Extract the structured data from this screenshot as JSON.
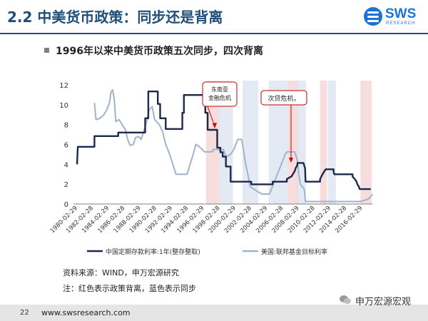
{
  "slide": {
    "title": "2.2 中美货币政策：同步还是背离",
    "subtitle": "1996年以来中美货币政策五次同步，四次背离",
    "logo_text": "SWS",
    "logo_sub": "RESEARCH"
  },
  "chart_data": {
    "type": "line",
    "title": "",
    "xlabel": "",
    "ylabel": "",
    "ylim": [
      0,
      12
    ],
    "yticks": [
      0,
      2,
      4,
      6,
      8,
      10,
      12
    ],
    "xticks": [
      "1980-02-29",
      "1982-02-28",
      "1984-02-29",
      "1986-02-28",
      "1988-02-29",
      "1990-02-28",
      "1992-02-29",
      "1994-02-28",
      "1996-02-29",
      "1998-02-28",
      "2000-02-29",
      "2002-02-28",
      "2004-02-29",
      "2006-02-28",
      "2008-02-29",
      "2010-02-28",
      "2012-02-29",
      "2014-02-28",
      "2016-02-29"
    ],
    "series": [
      {
        "name": "中国定期存款利率:1年(整存整取)",
        "color": "#1b2a4a",
        "points": [
          [
            1980.1,
            4.0
          ],
          [
            1980.2,
            5.76
          ],
          [
            1982.3,
            5.76
          ],
          [
            1982.3,
            6.84
          ],
          [
            1985.3,
            6.84
          ],
          [
            1985.3,
            7.2
          ],
          [
            1988.7,
            7.2
          ],
          [
            1988.7,
            8.64
          ],
          [
            1989.1,
            8.64
          ],
          [
            1989.1,
            11.34
          ],
          [
            1990.3,
            11.34
          ],
          [
            1990.3,
            10.08
          ],
          [
            1990.6,
            10.08
          ],
          [
            1990.6,
            8.64
          ],
          [
            1991.3,
            8.64
          ],
          [
            1991.3,
            7.56
          ],
          [
            1993.4,
            7.56
          ],
          [
            1993.4,
            9.18
          ],
          [
            1993.6,
            9.18
          ],
          [
            1993.6,
            10.98
          ],
          [
            1996.3,
            10.98
          ],
          [
            1996.3,
            9.18
          ],
          [
            1996.6,
            9.18
          ],
          [
            1996.6,
            7.47
          ],
          [
            1997.8,
            7.47
          ],
          [
            1997.8,
            5.67
          ],
          [
            1998.2,
            5.67
          ],
          [
            1998.2,
            5.22
          ],
          [
            1998.5,
            5.22
          ],
          [
            1998.5,
            4.77
          ],
          [
            1998.9,
            4.77
          ],
          [
            1998.9,
            3.78
          ],
          [
            1999.5,
            3.78
          ],
          [
            1999.5,
            2.25
          ],
          [
            2002.1,
            2.25
          ],
          [
            2002.1,
            1.98
          ],
          [
            2004.8,
            1.98
          ],
          [
            2004.8,
            2.25
          ],
          [
            2006.6,
            2.25
          ],
          [
            2006.6,
            2.52
          ],
          [
            2007.2,
            2.79
          ],
          [
            2007.4,
            3.06
          ],
          [
            2007.6,
            3.33
          ],
          [
            2007.7,
            3.6
          ],
          [
            2007.9,
            3.87
          ],
          [
            2007.95,
            4.14
          ],
          [
            2008.7,
            4.14
          ],
          [
            2008.8,
            3.87
          ],
          [
            2008.9,
            3.6
          ],
          [
            2008.95,
            2.52
          ],
          [
            2008.97,
            2.25
          ],
          [
            2010.8,
            2.25
          ],
          [
            2010.8,
            2.5
          ],
          [
            2010.95,
            2.75
          ],
          [
            2011.1,
            3.0
          ],
          [
            2011.3,
            3.25
          ],
          [
            2011.5,
            3.5
          ],
          [
            2012.5,
            3.5
          ],
          [
            2012.5,
            3.25
          ],
          [
            2012.6,
            3.0
          ],
          [
            2014.9,
            3.0
          ],
          [
            2014.9,
            2.75
          ],
          [
            2015.2,
            2.5
          ],
          [
            2015.4,
            2.25
          ],
          [
            2015.5,
            2.0
          ],
          [
            2015.7,
            1.75
          ],
          [
            2015.8,
            1.5
          ],
          [
            2017.2,
            1.5
          ]
        ]
      },
      {
        "name": "美国:联邦基金目标利率",
        "color": "#9fb4cc",
        "points": [
          [
            1982.3,
            10.2
          ],
          [
            1982.5,
            8.5
          ],
          [
            1982.9,
            8.6
          ],
          [
            1983.4,
            8.9
          ],
          [
            1983.8,
            9.4
          ],
          [
            1984.2,
            10.2
          ],
          [
            1984.4,
            11.3
          ],
          [
            1984.6,
            11.5
          ],
          [
            1984.8,
            10.5
          ],
          [
            1985.0,
            8.3
          ],
          [
            1985.4,
            8.5
          ],
          [
            1985.8,
            8.0
          ],
          [
            1986.2,
            7.5
          ],
          [
            1986.5,
            6.5
          ],
          [
            1986.8,
            5.9
          ],
          [
            1987.2,
            6.0
          ],
          [
            1987.5,
            6.7
          ],
          [
            1987.9,
            6.8
          ],
          [
            1988.2,
            6.5
          ],
          [
            1988.6,
            7.5
          ],
          [
            1988.9,
            8.3
          ],
          [
            1989.2,
            9.5
          ],
          [
            1989.6,
            9.8
          ],
          [
            1989.9,
            8.5
          ],
          [
            1990.5,
            8.0
          ],
          [
            1990.9,
            7.3
          ],
          [
            1991.3,
            6.0
          ],
          [
            1991.8,
            5.0
          ],
          [
            1992.2,
            4.0
          ],
          [
            1992.6,
            3.0
          ],
          [
            1994.0,
            3.0
          ],
          [
            1994.3,
            3.8
          ],
          [
            1994.7,
            4.8
          ],
          [
            1995.1,
            6.0
          ],
          [
            1995.5,
            5.8
          ],
          [
            1995.9,
            5.5
          ],
          [
            1996.2,
            5.25
          ],
          [
            1997.2,
            5.25
          ],
          [
            1997.3,
            5.5
          ],
          [
            1998.6,
            5.5
          ],
          [
            1998.8,
            5.0
          ],
          [
            1998.95,
            4.75
          ],
          [
            1999.5,
            5.0
          ],
          [
            1999.9,
            5.5
          ],
          [
            2000.4,
            6.5
          ],
          [
            2000.9,
            6.5
          ],
          [
            2001.1,
            5.5
          ],
          [
            2001.4,
            4.0
          ],
          [
            2001.8,
            2.5
          ],
          [
            2001.95,
            1.75
          ],
          [
            2002.9,
            1.25
          ],
          [
            2003.5,
            1.0
          ],
          [
            2004.4,
            1.0
          ],
          [
            2004.9,
            2.0
          ],
          [
            2005.4,
            3.0
          ],
          [
            2005.9,
            4.0
          ],
          [
            2006.4,
            5.0
          ],
          [
            2006.6,
            5.25
          ],
          [
            2007.6,
            5.25
          ],
          [
            2007.8,
            4.75
          ],
          [
            2007.95,
            4.25
          ],
          [
            2008.1,
            3.0
          ],
          [
            2008.3,
            2.0
          ],
          [
            2008.8,
            1.5
          ],
          [
            2008.95,
            0.25
          ],
          [
            2015.9,
            0.25
          ],
          [
            2016.9,
            0.5
          ],
          [
            2017.2,
            0.75
          ],
          [
            2017.4,
            1.0
          ]
        ]
      }
    ],
    "divergence_periods_red": [
      [
        1996.4,
        1998.1
      ],
      [
        2006.7,
        2008.0
      ],
      [
        2010.8,
        2011.7
      ],
      [
        2015.9,
        2017.3
      ]
    ],
    "sync_periods_blue": [
      [
        1998.1,
        1999.8
      ],
      [
        2001.0,
        2003.0
      ],
      [
        2004.3,
        2006.7
      ],
      [
        2007.9,
        2009.0
      ],
      [
        2011.8,
        2012.8
      ]
    ],
    "annotations": [
      "东南亚金融危机",
      "次贷危机，"
    ],
    "legend_position": "bottom"
  },
  "notes": {
    "source": "资料来源：WIND，申万宏源研究",
    "note": "注：红色表示政策背离，蓝色表示同步"
  },
  "footer": {
    "page_number": "22",
    "url": "www.swsresearch.com",
    "wechat_label": "申万宏源宏观"
  }
}
